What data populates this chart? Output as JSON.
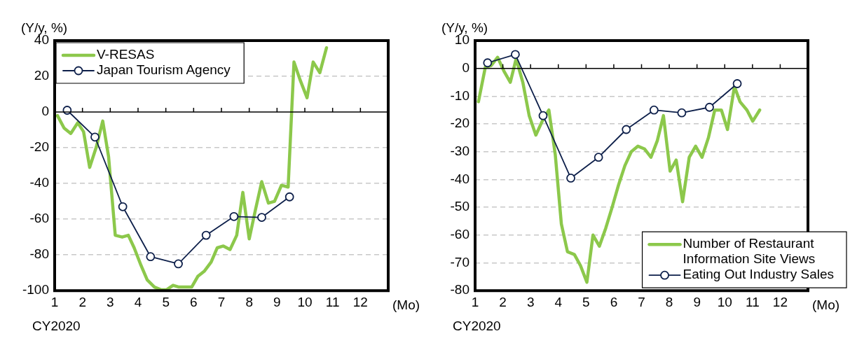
{
  "chart_data": [
    {
      "type": "line",
      "ylabel": "(Y/y, %)",
      "xlabel": "(Mo)",
      "annotations": [
        "CY2020"
      ],
      "xlim": [
        1,
        13
      ],
      "xticks": [
        1,
        2,
        3,
        4,
        5,
        6,
        7,
        8,
        9,
        10,
        11,
        12,
        {
          "value": 13,
          "label": null
        }
      ],
      "ylim": [
        -100,
        40
      ],
      "yticks": [
        -100,
        -80,
        -60,
        -40,
        -20,
        0,
        20,
        40
      ],
      "grid": "y",
      "legend": "top left",
      "series": [
        {
          "name": "V-RESAS",
          "color": "#8cc84b",
          "marker": "none",
          "x": [
            1.1,
            1.34,
            1.58,
            1.83,
            2.04,
            2.26,
            2.5,
            2.73,
            2.94,
            3.18,
            3.43,
            3.65,
            3.86,
            4.11,
            4.33,
            4.59,
            4.82,
            5.03,
            5.26,
            5.47,
            5.71,
            5.93,
            6.15,
            6.39,
            6.63,
            6.85,
            7.07,
            7.31,
            7.55,
            7.77,
            8.0,
            8.22,
            8.45,
            8.69,
            8.91,
            9.16,
            9.4,
            9.61,
            9.83,
            10.08,
            10.3,
            10.54,
            10.78
          ],
          "values": [
            -2,
            -9,
            -12,
            -6,
            -11,
            -31,
            -19.5,
            -5,
            -25,
            -69,
            -70,
            -69,
            -76,
            -86,
            -94,
            -98,
            -99.5,
            -99.5,
            -97,
            -98,
            -98,
            -98,
            -92,
            -89,
            -84,
            -76,
            -75,
            -77,
            -69,
            -45,
            -71,
            -55,
            -39,
            -51,
            -50,
            -41,
            -42,
            28,
            18,
            8,
            28,
            22,
            36
          ]
        },
        {
          "name": "Japan Tourism Agency",
          "color": "#0d1f4a",
          "marker": "circle",
          "x": [
            1.45,
            2.45,
            3.45,
            4.45,
            5.45,
            6.45,
            7.45,
            8.45,
            9.45
          ],
          "values": [
            1,
            -14,
            -53,
            -81,
            -85,
            -69,
            -58.5,
            -59,
            -47.5
          ]
        }
      ]
    },
    {
      "type": "line",
      "ylabel": "(Y/y, %)",
      "xlabel": "(Mo)",
      "annotations": [
        "CY2020"
      ],
      "xlim": [
        1,
        13
      ],
      "xticks": [
        1,
        2,
        3,
        4,
        5,
        6,
        7,
        8,
        9,
        10,
        11,
        12,
        {
          "value": 13,
          "label": null
        }
      ],
      "ylim": [
        -80,
        10
      ],
      "yticks": [
        -80,
        -70,
        -60,
        -50,
        -40,
        -30,
        -20,
        -10,
        0,
        10
      ],
      "grid": "y",
      "legend": "bottom right",
      "series": [
        {
          "name": "Number of Restaurant Information Site Views",
          "color": "#8cc84b",
          "marker": "none",
          "x": [
            1.12,
            1.37,
            1.58,
            1.81,
            2.04,
            2.27,
            2.48,
            2.72,
            2.95,
            3.19,
            3.42,
            3.66,
            3.89,
            4.11,
            4.33,
            4.58,
            4.8,
            5.03,
            5.25,
            5.48,
            5.71,
            5.94,
            6.17,
            6.4,
            6.63,
            6.87,
            7.11,
            7.34,
            7.57,
            7.79,
            8.03,
            8.25,
            8.48,
            8.72,
            8.95,
            9.18,
            9.41,
            9.64,
            9.88,
            10.1,
            10.35,
            10.55,
            10.8,
            11.01,
            11.26
          ],
          "values": [
            -12,
            0.5,
            1,
            4,
            -1,
            -5,
            3.5,
            -5,
            -17,
            -24,
            -19,
            -15,
            -31,
            -56,
            -66,
            -67,
            -71,
            -77,
            -60,
            -64,
            -57.5,
            -50,
            -42,
            -35,
            -30,
            -28,
            -29,
            -32,
            -26,
            -17,
            -37,
            -33,
            -48,
            -32,
            -28,
            -32,
            -25,
            -15,
            -15,
            -22,
            -6.5,
            -12,
            -15,
            -19,
            -15
          ]
        },
        {
          "name": "Eating Out Industry Sales",
          "color": "#0d1f4a",
          "marker": "circle",
          "x": [
            1.45,
            2.45,
            3.45,
            4.45,
            5.45,
            6.45,
            7.45,
            8.45,
            9.45,
            10.45
          ],
          "values": [
            2,
            5,
            -17,
            -39.5,
            -32,
            -22,
            -15,
            -16,
            -14,
            -5.5
          ]
        }
      ]
    }
  ]
}
